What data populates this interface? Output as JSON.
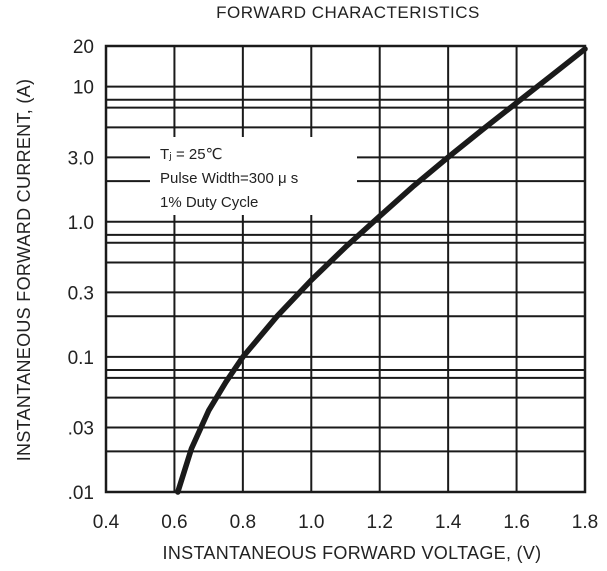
{
  "chart_data": {
    "type": "line",
    "title": "FORWARD CHARACTERISTICS",
    "xlabel": "INSTANTANEOUS FORWARD VOLTAGE, (V)",
    "ylabel": "INSTANTANEOUS FORWARD CURRENT, (A)",
    "xlim": [
      0.4,
      1.8
    ],
    "ylim": [
      0.01,
      20
    ],
    "y_scale": "log",
    "grid": true,
    "x_ticks": [
      0.4,
      0.6,
      0.8,
      1.0,
      1.2,
      1.4,
      1.6,
      1.8
    ],
    "x_tick_labels": [
      "0.4",
      "0.6",
      "0.8",
      "1.0",
      "1.2",
      "1.4",
      "1.6",
      "1.8"
    ],
    "y_ticks": [
      0.01,
      0.03,
      0.1,
      0.3,
      1.0,
      3.0,
      10,
      20
    ],
    "y_tick_labels": [
      ".01",
      ".03",
      "0.1",
      "0.3",
      "1.0",
      "3.0",
      "10",
      "20"
    ],
    "y_minor_grid": [
      0.02,
      0.03,
      0.05,
      0.07,
      0.08,
      0.2,
      0.3,
      0.5,
      0.7,
      0.8,
      2,
      3,
      5,
      7,
      8
    ],
    "annotations": [
      "Tⱼ = 25℃",
      "Pulse Width=300 μ s",
      "1% Duty Cycle"
    ],
    "series": [
      {
        "x": [
          0.61,
          0.65,
          0.7,
          0.75,
          0.8,
          0.9,
          1.0,
          1.1,
          1.2,
          1.3,
          1.4,
          1.5,
          1.6,
          1.7,
          1.8
        ],
        "y": [
          0.01,
          0.021,
          0.04,
          0.065,
          0.1,
          0.2,
          0.37,
          0.65,
          1.1,
          1.85,
          3.0,
          4.8,
          7.6,
          12,
          19
        ]
      }
    ],
    "colors": {
      "line": "#1a1a1a",
      "grid": "#1a1a1a",
      "text": "#222222"
    }
  }
}
